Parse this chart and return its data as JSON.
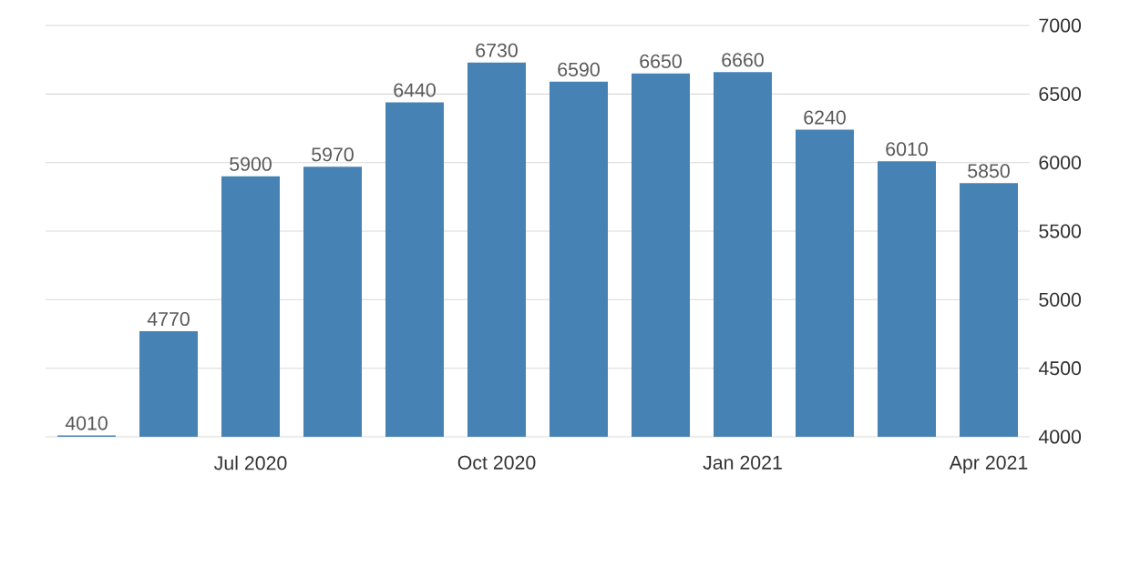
{
  "chart_data": {
    "type": "bar",
    "categories": [
      null,
      null,
      "Jul 2020",
      null,
      null,
      "Oct 2020",
      null,
      null,
      "Jan 2021",
      null,
      null,
      "Apr 2021"
    ],
    "values": [
      4010,
      4770,
      5900,
      5970,
      6440,
      6730,
      6590,
      6650,
      6660,
      6240,
      6010,
      5850
    ],
    "color": "#4682b4",
    "ylim": [
      4000,
      7000
    ],
    "yticks": [
      4000,
      4500,
      5000,
      5500,
      6000,
      6500,
      7000
    ],
    "grid": "y",
    "data_labels": true
  }
}
